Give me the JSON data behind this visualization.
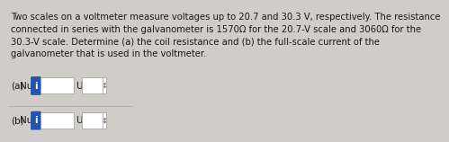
{
  "bg_color": "#d0ccc8",
  "text_color": "#1a1a1a",
  "paragraph": "Two scales on a voltmeter measure voltages up to 20.7 and 30.3 V, respectively. The resistance\nconnected in series with the galvanometer is 1570Ω for the 20.7-V scale and 3060Ω for the\n30.3-V scale. Determine (a) the coil resistance and (b) the full-scale current of the\ngalvanometer that is used in the voltmeter.",
  "row_a_label": "(a)",
  "row_a_number": "Number",
  "row_b_label": "(b)",
  "row_b_number": "Number",
  "units_label": "Units",
  "info_btn_color": "#2255aa",
  "info_btn_text": "i",
  "input_box_color": "#ffffff",
  "units_box_color": "#ffffff",
  "divider_color": "#aaaaaa",
  "font_size_para": 7.2,
  "font_size_row": 7.5
}
